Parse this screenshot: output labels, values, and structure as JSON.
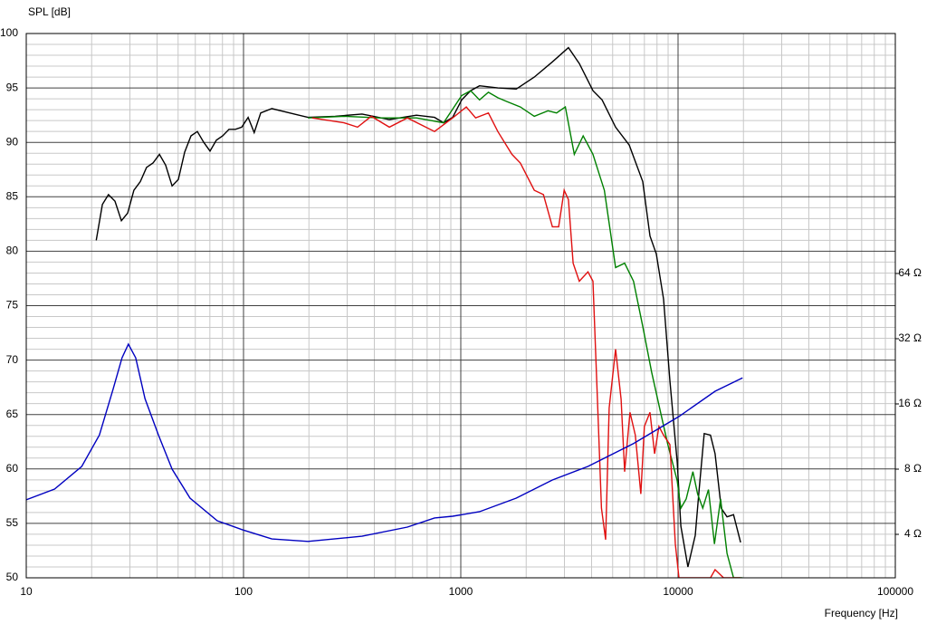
{
  "chart_data": {
    "type": "line",
    "ylabel": "SPL [dB]",
    "xlabel": "Frequency [Hz]",
    "xscale": "log",
    "y2scale": "log",
    "grid": true,
    "minor_grid": true,
    "xlim": [
      10,
      100000
    ],
    "xticks": [
      10,
      100,
      1000,
      10000,
      100000
    ],
    "ylim": [
      50,
      100
    ],
    "yticks": [
      50,
      55,
      60,
      65,
      70,
      75,
      80,
      85,
      90,
      95,
      100
    ],
    "y2lim": [
      2.52,
      820
    ],
    "y2ticks": [
      {
        "value": 4,
        "label": "4 Ω"
      },
      {
        "value": 8,
        "label": "8 Ω"
      },
      {
        "value": 16,
        "label": "16 Ω"
      },
      {
        "value": 32,
        "label": "32 Ω"
      },
      {
        "value": 64,
        "label": "64 Ω"
      }
    ],
    "series": [
      {
        "color": "#000000",
        "x": [
          21,
          22.4,
          23.9,
          25.6,
          27.4,
          29.3,
          31.3,
          33.5,
          35.8,
          38.3,
          41,
          43.8,
          46.9,
          50.1,
          53.6,
          57.3,
          61.3,
          65.6,
          70.1,
          75,
          80.2,
          85.8,
          91.7,
          98.1,
          105,
          112,
          120,
          135,
          163,
          198,
          264,
          351,
          469,
          625,
          757,
          833,
          917,
          1010,
          1110,
          1220,
          1480,
          1800,
          2180,
          2640,
          3130,
          3510,
          4060,
          4470,
          5160,
          5960,
          6880,
          7430,
          7940,
          8580,
          9170,
          9910,
          10300,
          11100,
          12000,
          12500,
          13200,
          14100,
          14800,
          15800,
          16800,
          18000,
          19400
        ],
        "values": [
          81,
          84.3,
          85.2,
          84.6,
          82.8,
          83.5,
          85.6,
          86.4,
          87.7,
          88.1,
          88.9,
          87.9,
          86,
          86.6,
          89.1,
          90.6,
          91,
          90,
          89.2,
          90.2,
          90.6,
          91.2,
          91.2,
          91.4,
          92.3,
          90.9,
          92.7,
          93.1,
          92.7,
          92.3,
          92.4,
          92.6,
          92.1,
          92.5,
          92.3,
          91.8,
          92.3,
          93.9,
          94.75,
          95.2,
          95,
          94.9,
          96,
          97.4,
          98.7,
          97.25,
          94.75,
          93.9,
          91.4,
          89.75,
          86.4,
          81.4,
          79.75,
          75.6,
          68.1,
          60.6,
          54.75,
          51,
          53.9,
          58.1,
          63.25,
          63.1,
          61.4,
          56.4,
          55.6,
          55.8,
          53.25
        ]
      },
      {
        "color": "#008000",
        "x": [
          198,
          290,
          426,
          625,
          833,
          1010,
          1110,
          1220,
          1340,
          1480,
          1630,
          1880,
          2180,
          2520,
          2760,
          3030,
          3330,
          3660,
          4060,
          4580,
          5160,
          5680,
          6240,
          6880,
          7560,
          8310,
          8970,
          9910,
          10300,
          10900,
          11700,
          12300,
          13000,
          13800,
          14700,
          15700,
          16800,
          18000,
          19800
        ],
        "values": [
          92.25,
          92.4,
          92.25,
          92.25,
          91.8,
          94.3,
          94.75,
          93.9,
          94.6,
          94.1,
          93.75,
          93.25,
          92.4,
          92.9,
          92.7,
          93.25,
          88.9,
          90.6,
          88.9,
          85.6,
          78.5,
          78.9,
          77.25,
          73.1,
          68.9,
          65.2,
          62.25,
          58.9,
          56.4,
          57.25,
          59.75,
          57.7,
          56.4,
          58.1,
          53.1,
          57.25,
          52.25,
          50,
          50
        ]
      },
      {
        "color": "#e01010",
        "x": [
          207,
          290,
          335,
          387,
          469,
          568,
          757,
          917,
          1060,
          1170,
          1340,
          1480,
          1720,
          1880,
          2180,
          2400,
          2640,
          2820,
          2990,
          3130,
          3290,
          3510,
          3850,
          4060,
          4270,
          4440,
          4640,
          4820,
          5160,
          5470,
          5680,
          6010,
          6360,
          6740,
          7000,
          7430,
          7800,
          8170,
          8580,
          9170,
          9720,
          10100,
          11100,
          14100,
          14800,
          16200,
          19400
        ],
        "values": [
          92.25,
          91.8,
          91.4,
          92.4,
          91.4,
          92.25,
          91,
          92.25,
          93.25,
          92.25,
          92.7,
          91,
          88.9,
          88.1,
          85.6,
          85.2,
          82.25,
          82.25,
          85.6,
          84.75,
          78.9,
          77.25,
          78.1,
          77.25,
          65.6,
          56.4,
          53.5,
          65.6,
          71,
          66.4,
          59.75,
          65.2,
          63.1,
          57.7,
          63.9,
          65.2,
          61.4,
          63.9,
          63.1,
          62.25,
          53.1,
          50,
          50,
          50,
          50.75,
          50,
          50
        ]
      },
      {
        "color": "#0000c0",
        "axis": "y2",
        "x": [
          10,
          13.5,
          18,
          21.7,
          25.1,
          27.6,
          29.5,
          31.9,
          35.2,
          40.6,
          46.9,
          56.7,
          75.7,
          98.8,
          135,
          198,
          351,
          568,
          757,
          917,
          1220,
          1800,
          2640,
          3850,
          6240,
          10100,
          14800,
          19800
        ],
        "values": [
          5.77,
          6.47,
          8.23,
          11.5,
          18.7,
          26.1,
          30.2,
          26.1,
          16.9,
          11.5,
          8,
          5.88,
          4.62,
          4.2,
          3.81,
          3.71,
          3.92,
          4.32,
          4.76,
          4.85,
          5.09,
          5.88,
          7.13,
          8.23,
          10.5,
          14,
          18.3,
          21.1
        ]
      }
    ]
  }
}
